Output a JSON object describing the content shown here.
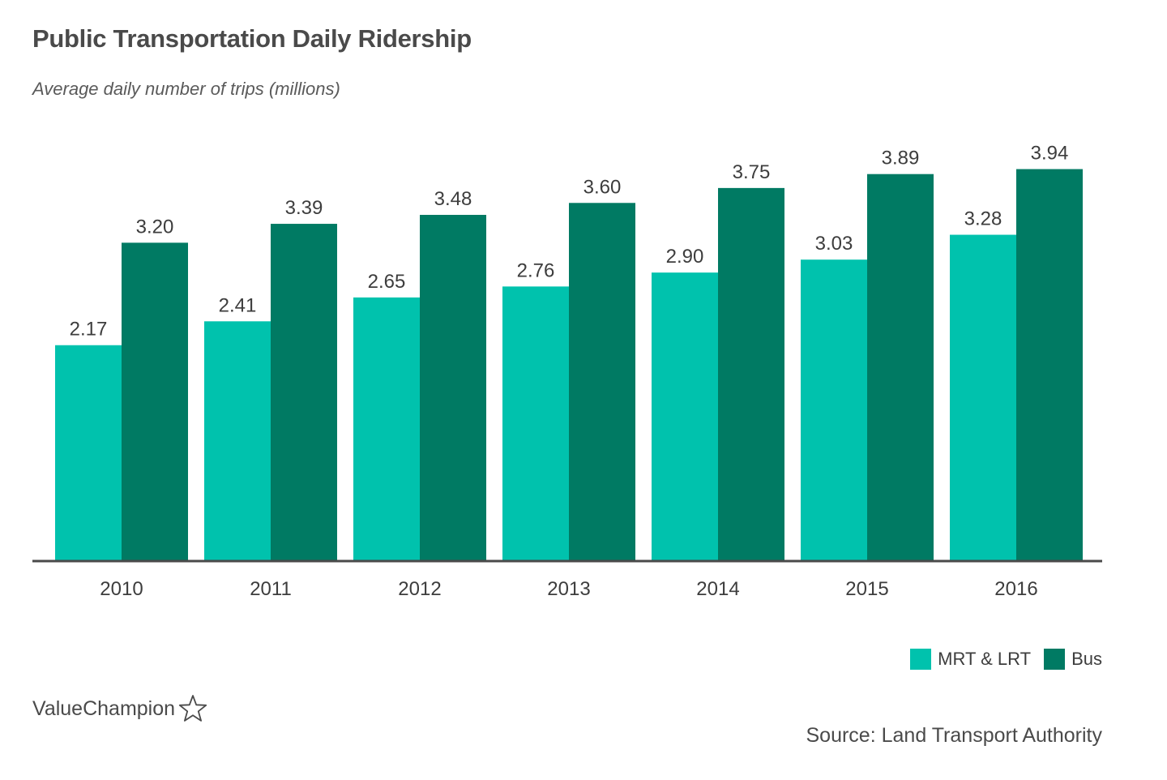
{
  "title": "Public Transportation Daily Ridership",
  "subtitle": "Average daily number of trips (millions)",
  "brand": "ValueChampion",
  "source": "Source: Land Transport Authority",
  "colors": {
    "mrt_lrt": "#00c2ad",
    "bus": "#007a63",
    "axis": "#4a4a4a",
    "label": "#3d3d3d"
  },
  "chart_data": {
    "type": "bar",
    "categories": [
      "2010",
      "2011",
      "2012",
      "2013",
      "2014",
      "2015",
      "2016"
    ],
    "series": [
      {
        "name": "MRT & LRT",
        "values": [
          2.17,
          2.41,
          2.65,
          2.76,
          2.9,
          3.03,
          3.28
        ],
        "labels": [
          "2.17",
          "2.41",
          "2.65",
          "2.76",
          "2.90",
          "3.03",
          "3.28"
        ]
      },
      {
        "name": "Bus",
        "values": [
          3.2,
          3.39,
          3.48,
          3.6,
          3.75,
          3.89,
          3.94
        ],
        "labels": [
          "3.20",
          "3.39",
          "3.48",
          "3.60",
          "3.75",
          "3.89",
          "3.94"
        ]
      }
    ],
    "ylim": [
      0,
      4
    ],
    "grid": false,
    "legend_position": "bottom-right",
    "data_labels": true
  }
}
